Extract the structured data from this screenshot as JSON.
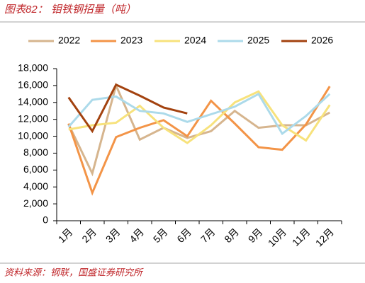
{
  "chart_data": {
    "type": "line",
    "title": "图表82：  钼铁钢招量（吨）",
    "source": "资料来源：钢联，国盛证券研究所",
    "categories": [
      "1月",
      "2月",
      "3月",
      "4月",
      "5月",
      "6月",
      "7月",
      "8月",
      "9月",
      "10月",
      "11月",
      "12月"
    ],
    "series": [
      {
        "name": "2022",
        "color": "#d6b58e",
        "values": [
          11400,
          5600,
          16000,
          9600,
          11000,
          9800,
          10600,
          13000,
          11000,
          11300,
          11300,
          12800
        ]
      },
      {
        "name": "2023",
        "color": "#f39447",
        "values": [
          11500,
          3300,
          9900,
          11000,
          11900,
          10000,
          14200,
          11500,
          8700,
          8400,
          11400,
          15900
        ]
      },
      {
        "name": "2024",
        "color": "#f7e27c",
        "values": [
          10800,
          11300,
          11600,
          13600,
          11000,
          9200,
          11300,
          14000,
          15300,
          11300,
          9500,
          13700
        ]
      },
      {
        "name": "2025",
        "color": "#acdaea",
        "values": [
          11100,
          14300,
          14700,
          13000,
          12700,
          11700,
          12600,
          13500,
          15000,
          10300,
          12400,
          15000
        ]
      },
      {
        "name": "2026",
        "color": "#a3420f",
        "values": [
          14600,
          10600,
          16100,
          14800,
          13400,
          12700,
          null,
          null,
          null,
          null,
          null,
          null
        ]
      }
    ],
    "ylim": [
      0,
      18000
    ],
    "yticks": [
      0,
      {
        "value": 2000,
        "label": "2,000"
      },
      {
        "value": 4000,
        "label": "4,000"
      },
      {
        "value": 6000,
        "label": "6,000"
      },
      {
        "value": 8000,
        "label": "8,000"
      },
      {
        "value": 10000,
        "label": "10,000"
      },
      {
        "value": 12000,
        "label": "12,000"
      },
      {
        "value": 14000,
        "label": "14,000"
      },
      {
        "value": 16000,
        "label": "16,000"
      },
      {
        "value": 18000,
        "label": "18,000"
      }
    ],
    "grid": false
  }
}
